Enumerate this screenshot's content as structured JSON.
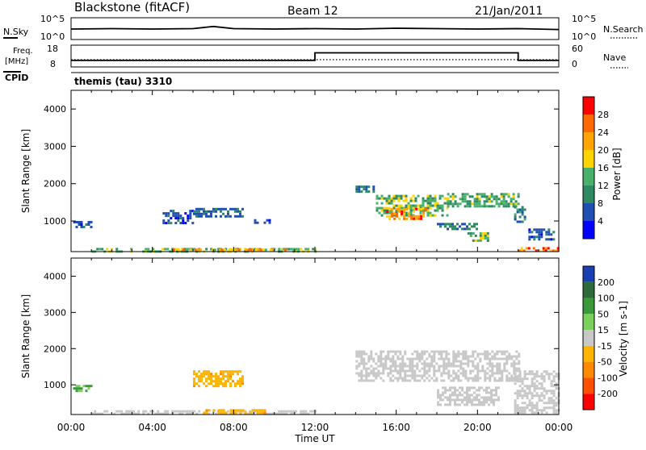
{
  "header": {
    "station": "Blackstone (fitACF)",
    "beam": "Beam 12",
    "date": "21/Jan/2011"
  },
  "panels": {
    "nsky": {
      "label": "N.Sky",
      "right_label": "N.Search",
      "ticks": [
        "10^5",
        "10^0"
      ],
      "right_ticks": [
        "10^5",
        "10^0"
      ]
    },
    "freq": {
      "label_line1": "Freq.",
      "label_line2": "[MHz]",
      "left_ticks": [
        "18",
        "8"
      ],
      "right_ticks": [
        "60",
        "0"
      ],
      "right_label": "Nave"
    },
    "cpid": {
      "label": "CPID",
      "mode": "themis (tau) 3310"
    }
  },
  "colors": {
    "power_scale": [
      "#0000ff",
      "#1f4fb0",
      "#2f8a64",
      "#47b06a",
      "#ffd400",
      "#ffa400",
      "#ff6a00",
      "#ff0000"
    ],
    "velocity_scale": [
      "#1a3fb0",
      "#2f6a3a",
      "#3a9a3a",
      "#7ad05a",
      "#c8c8c8",
      "#ffb400",
      "#ff8a00",
      "#ff5000",
      "#ff0000"
    ],
    "frame": "#000000"
  },
  "chart_data": [
    {
      "type": "line",
      "name_left": "N.Sky",
      "name_right": "N.Search",
      "x": [
        "00:00",
        "02:00",
        "04:00",
        "06:00",
        "07:00",
        "08:00",
        "10:00",
        "12:00",
        "14:00",
        "16:00",
        "18:00",
        "20:00",
        "22:00",
        "24:00"
      ],
      "series": [
        {
          "values": [
            2.4,
            2.5,
            2.4,
            2.5,
            3.0,
            2.5,
            2.4,
            2.5,
            2.4,
            2.6,
            2.5,
            2.4,
            2.5,
            2.3
          ]
        }
      ],
      "ylim": [
        0,
        5
      ],
      "yscale": "log"
    },
    {
      "type": "line",
      "ylabel": "Freq. [MHz]",
      "x": [
        "00:00",
        "12:00",
        "12:00",
        "22:00",
        "22:00",
        "24:00"
      ],
      "series": [
        {
          "values": [
            11,
            11,
            14.5,
            14.5,
            11,
            11
          ]
        }
      ],
      "ylim": [
        8,
        18
      ],
      "y2label": "Nave",
      "y2lim": [
        0,
        60
      ],
      "y2_values": [
        20,
        20,
        20,
        20,
        20,
        20
      ]
    },
    {
      "type": "heatmap",
      "title": "Power",
      "ylabel": "Slant Range [km]",
      "xlabel": "",
      "x_ticks": [
        "00:00",
        "04:00",
        "08:00",
        "12:00",
        "16:00",
        "20:00",
        "00:00"
      ],
      "y_ticks": [
        1000,
        2000,
        3000,
        4000
      ],
      "ylim": [
        180,
        4500
      ],
      "colorbar": {
        "label": "Power [dB]",
        "ticks": [
          4,
          8,
          12,
          16,
          20,
          24,
          28
        ],
        "range": [
          0,
          32
        ]
      },
      "regions": [
        {
          "t": [
            0.1,
            1.0
          ],
          "r": [
            850,
            1000
          ],
          "value": 6
        },
        {
          "t": [
            4.5,
            6.0
          ],
          "r": [
            950,
            1300
          ],
          "value": 6
        },
        {
          "t": [
            6.0,
            8.5
          ],
          "r": [
            1150,
            1350
          ],
          "value": 7
        },
        {
          "t": [
            9.0,
            9.8
          ],
          "r": [
            950,
            1050
          ],
          "value": 6
        },
        {
          "t": [
            1.0,
            12.0
          ],
          "r": [
            200,
            280
          ],
          "value": 14
        },
        {
          "t": [
            5.0,
            10.5
          ],
          "r": [
            200,
            260
          ],
          "value": 22
        },
        {
          "t": [
            14.0,
            15.0
          ],
          "r": [
            1800,
            1950
          ],
          "value": 8
        },
        {
          "t": [
            15.0,
            18.5
          ],
          "r": [
            1150,
            1700
          ],
          "value": 14
        },
        {
          "t": [
            15.5,
            17.5
          ],
          "r": [
            1050,
            1350
          ],
          "value": 24
        },
        {
          "t": [
            18.5,
            22.0
          ],
          "r": [
            1400,
            1750
          ],
          "value": 13
        },
        {
          "t": [
            18.0,
            20.0
          ],
          "r": [
            800,
            950
          ],
          "value": 9
        },
        {
          "t": [
            19.5,
            20.5
          ],
          "r": [
            480,
            700
          ],
          "value": 14
        },
        {
          "t": [
            21.8,
            22.3
          ],
          "r": [
            1000,
            1400
          ],
          "value": 10
        },
        {
          "t": [
            22.0,
            24.0
          ],
          "r": [
            200,
            300
          ],
          "value": 26
        },
        {
          "t": [
            22.5,
            23.8
          ],
          "r": [
            500,
            800
          ],
          "value": 6
        }
      ]
    },
    {
      "type": "heatmap",
      "title": "Velocity",
      "ylabel": "Slant Range [km]",
      "xlabel": "Time UT",
      "x_ticks": [
        "00:00",
        "04:00",
        "08:00",
        "12:00",
        "16:00",
        "20:00",
        "00:00"
      ],
      "y_ticks": [
        1000,
        2000,
        3000,
        4000
      ],
      "ylim": [
        180,
        4500
      ],
      "colorbar": {
        "label": "Velocity [m s-1]",
        "ticks": [
          200,
          100,
          50,
          15,
          -15,
          -50,
          -100,
          -200
        ],
        "range": [
          -250,
          250
        ]
      },
      "regions": [
        {
          "t": [
            0.1,
            1.0
          ],
          "r": [
            850,
            1000
          ],
          "value": 60
        },
        {
          "t": [
            6.0,
            8.5
          ],
          "r": [
            950,
            1400
          ],
          "value": -40
        },
        {
          "t": [
            1.0,
            12.0
          ],
          "r": [
            200,
            300
          ],
          "value": 0
        },
        {
          "t": [
            6.5,
            9.5
          ],
          "r": [
            200,
            330
          ],
          "value": -40
        },
        {
          "t": [
            14.0,
            22.0
          ],
          "r": [
            1100,
            1950
          ],
          "value": 0
        },
        {
          "t": [
            18.0,
            21.0
          ],
          "r": [
            480,
            950
          ],
          "value": 0
        },
        {
          "t": [
            21.8,
            24.0
          ],
          "r": [
            200,
            1400
          ],
          "value": 0
        }
      ]
    }
  ]
}
